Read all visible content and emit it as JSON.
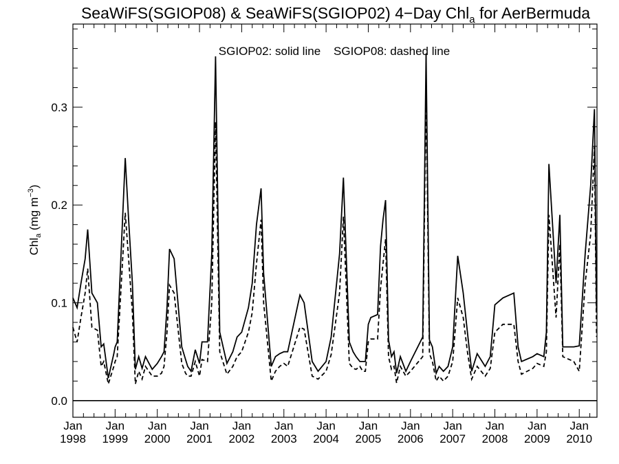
{
  "chart_data": {
    "type": "line",
    "title": "SeaWiFS(SGIOP08) & SeaWiFS(SGIOP02) 4−Day Chl",
    "title_sub": "a",
    "title_suffix": " for AerBermuda",
    "ylabel": "Chl",
    "ylabel_sub": "a",
    "ylabel_units": " (mg m",
    "ylabel_sup": "−3",
    "ylabel_close": ")",
    "annotation": "SGIOP02: solid line    SGIOP08: dashed line",
    "xlim": [
      1998.0,
      2010.42
    ],
    "ylim": [
      -0.017,
      0.385
    ],
    "yticks": [
      0.0,
      0.1,
      0.2,
      0.3
    ],
    "ytick_labels": [
      "0.0",
      "0.1",
      "0.2",
      "0.3"
    ],
    "xticks": [
      1998,
      1999,
      2000,
      2001,
      2002,
      2003,
      2004,
      2005,
      2006,
      2007,
      2008,
      2009,
      2010
    ],
    "xtick_month_labels": [
      "Jan",
      "Jan",
      "Jan",
      "Jan",
      "Jan",
      "Jan",
      "Jan",
      "Jan",
      "Jan",
      "Jan",
      "Jan",
      "Jan",
      "Jan"
    ],
    "xtick_year_labels": [
      "1998",
      "1999",
      "2000",
      "2001",
      "2002",
      "2003",
      "2004",
      "2005",
      "2006",
      "2007",
      "2008",
      "2009",
      "2010"
    ],
    "zero_line": 0.0,
    "series": [
      {
        "name": "SGIOP02",
        "style": "solid",
        "color": "#000000",
        "x": [
          1998.0,
          1998.1,
          1998.19,
          1998.29,
          1998.35,
          1998.45,
          1998.58,
          1998.67,
          1998.73,
          1998.84,
          1998.97,
          1999.0,
          1999.05,
          1999.24,
          1999.32,
          1999.41,
          1999.48,
          1999.56,
          1999.64,
          1999.72,
          1999.88,
          2000.0,
          2000.1,
          2000.16,
          2000.23,
          2000.29,
          2000.4,
          2000.58,
          2000.67,
          2000.72,
          2000.8,
          2000.9,
          2001.0,
          2001.06,
          2001.19,
          2001.29,
          2001.38,
          2001.48,
          2001.65,
          2001.79,
          2001.89,
          2002.0,
          2002.16,
          2002.25,
          2002.35,
          2002.46,
          2002.52,
          2002.7,
          2002.8,
          2002.9,
          2003.0,
          2003.09,
          2003.38,
          2003.48,
          2003.67,
          2003.81,
          2004.0,
          2004.12,
          2004.32,
          2004.41,
          2004.55,
          2004.64,
          2004.71,
          2004.8,
          2004.87,
          2004.93,
          2005.0,
          2005.06,
          2005.22,
          2005.29,
          2005.35,
          2005.41,
          2005.48,
          2005.55,
          2005.61,
          2005.67,
          2005.76,
          2005.89,
          2006.0,
          2006.29,
          2006.37,
          2006.45,
          2006.52,
          2006.61,
          2006.68,
          2006.78,
          2006.89,
          2007.0,
          2007.12,
          2007.25,
          2007.35,
          2007.45,
          2007.58,
          2007.77,
          2007.89,
          2008.0,
          2008.19,
          2008.45,
          2008.55,
          2008.63,
          2008.9,
          2009.0,
          2009.16,
          2009.22,
          2009.28,
          2009.45,
          2009.54,
          2009.61,
          2009.87,
          2010.0,
          2010.14,
          2010.27,
          2010.36,
          2010.41
        ],
        "y": [
          0.105,
          0.095,
          0.12,
          0.145,
          0.175,
          0.11,
          0.1,
          0.055,
          0.058,
          0.023,
          0.048,
          0.055,
          0.06,
          0.248,
          0.185,
          0.12,
          0.032,
          0.045,
          0.033,
          0.045,
          0.032,
          0.038,
          0.045,
          0.05,
          0.095,
          0.155,
          0.145,
          0.055,
          0.042,
          0.035,
          0.03,
          0.052,
          0.038,
          0.06,
          0.06,
          0.15,
          0.352,
          0.07,
          0.038,
          0.05,
          0.065,
          0.07,
          0.095,
          0.12,
          0.18,
          0.217,
          0.13,
          0.035,
          0.045,
          0.048,
          0.05,
          0.05,
          0.108,
          0.1,
          0.04,
          0.03,
          0.04,
          0.065,
          0.15,
          0.228,
          0.06,
          0.05,
          0.045,
          0.04,
          0.04,
          0.04,
          0.078,
          0.085,
          0.088,
          0.158,
          0.185,
          0.205,
          0.062,
          0.045,
          0.05,
          0.028,
          0.045,
          0.03,
          0.04,
          0.065,
          0.355,
          0.062,
          0.055,
          0.028,
          0.035,
          0.03,
          0.035,
          0.055,
          0.148,
          0.11,
          0.07,
          0.03,
          0.048,
          0.035,
          0.045,
          0.098,
          0.105,
          0.11,
          0.055,
          0.04,
          0.045,
          0.048,
          0.045,
          0.07,
          0.242,
          0.12,
          0.19,
          0.055,
          0.055,
          0.056,
          0.15,
          0.22,
          0.298,
          0.09
        ]
      },
      {
        "name": "SGIOP08",
        "style": "dashed",
        "color": "#000000",
        "x": [
          1998.0,
          1998.1,
          1998.19,
          1998.29,
          1998.35,
          1998.45,
          1998.58,
          1998.67,
          1998.73,
          1998.84,
          1998.97,
          1999.0,
          1999.05,
          1999.24,
          1999.32,
          1999.41,
          1999.48,
          1999.56,
          1999.64,
          1999.72,
          1999.88,
          2000.0,
          2000.1,
          2000.16,
          2000.23,
          2000.29,
          2000.4,
          2000.58,
          2000.67,
          2000.72,
          2000.8,
          2000.9,
          2001.0,
          2001.06,
          2001.19,
          2001.29,
          2001.38,
          2001.48,
          2001.65,
          2001.79,
          2001.89,
          2002.0,
          2002.16,
          2002.25,
          2002.35,
          2002.46,
          2002.52,
          2002.7,
          2002.8,
          2002.9,
          2003.0,
          2003.09,
          2003.38,
          2003.48,
          2003.67,
          2003.81,
          2004.0,
          2004.12,
          2004.32,
          2004.41,
          2004.55,
          2004.64,
          2004.71,
          2004.8,
          2004.87,
          2004.93,
          2005.0,
          2005.06,
          2005.22,
          2005.29,
          2005.35,
          2005.41,
          2005.48,
          2005.55,
          2005.61,
          2005.67,
          2005.76,
          2005.89,
          2006.0,
          2006.29,
          2006.37,
          2006.45,
          2006.52,
          2006.61,
          2006.68,
          2006.78,
          2006.89,
          2007.0,
          2007.12,
          2007.25,
          2007.35,
          2007.45,
          2007.58,
          2007.77,
          2007.89,
          2008.0,
          2008.19,
          2008.45,
          2008.55,
          2008.63,
          2008.9,
          2009.0,
          2009.16,
          2009.22,
          2009.28,
          2009.45,
          2009.54,
          2009.61,
          2009.87,
          2010.0,
          2010.14,
          2010.27,
          2010.36,
          2010.41
        ],
        "y": [
          0.075,
          0.06,
          0.085,
          0.11,
          0.135,
          0.075,
          0.072,
          0.035,
          0.04,
          0.017,
          0.035,
          0.04,
          0.045,
          0.192,
          0.145,
          0.09,
          0.017,
          0.03,
          0.022,
          0.035,
          0.025,
          0.025,
          0.028,
          0.035,
          0.07,
          0.118,
          0.11,
          0.038,
          0.028,
          0.025,
          0.025,
          0.04,
          0.025,
          0.042,
          0.04,
          0.1,
          0.285,
          0.05,
          0.027,
          0.035,
          0.045,
          0.05,
          0.07,
          0.09,
          0.14,
          0.185,
          0.1,
          0.02,
          0.03,
          0.035,
          0.038,
          0.035,
          0.075,
          0.073,
          0.025,
          0.022,
          0.03,
          0.047,
          0.11,
          0.188,
          0.038,
          0.033,
          0.032,
          0.035,
          0.03,
          0.03,
          0.06,
          0.063,
          0.063,
          0.115,
          0.14,
          0.165,
          0.045,
          0.032,
          0.035,
          0.018,
          0.035,
          0.025,
          0.03,
          0.045,
          0.318,
          0.048,
          0.04,
          0.02,
          0.025,
          0.02,
          0.025,
          0.04,
          0.105,
          0.085,
          0.05,
          0.022,
          0.035,
          0.025,
          0.033,
          0.07,
          0.078,
          0.078,
          0.04,
          0.027,
          0.033,
          0.038,
          0.035,
          0.05,
          0.19,
          0.085,
          0.16,
          0.045,
          0.04,
          0.03,
          0.12,
          0.17,
          0.26,
          0.065
        ]
      }
    ]
  }
}
